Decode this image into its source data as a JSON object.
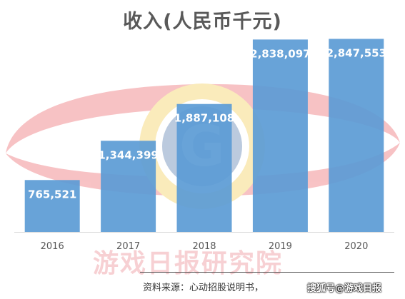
{
  "chart_data": {
    "type": "bar",
    "title": "收入(人民币千元)",
    "categories": [
      "2016",
      "2017",
      "2018",
      "2019",
      "2020"
    ],
    "values": [
      765521,
      1344399,
      1887108,
      2838097,
      2847553
    ],
    "value_labels": [
      "765,521",
      "1,344,399",
      "1,887,108",
      "2,838,097",
      "2,847,553"
    ],
    "ylim": [
      0,
      3000000
    ],
    "grid": false,
    "legend": "none",
    "bar_color": "#5B9BD5",
    "label_color": "#ffffff",
    "axis_color": "#D9D9D9"
  },
  "watermark": {
    "text": "游戏日报研究院",
    "logo_letter": "G",
    "ring_color": "#E8434B",
    "sun_color": "#F2C230",
    "center_color": "#2E5D9A"
  },
  "footer": {
    "source": "资料来源：心动招股说明书，",
    "credit": "搜狐号@游戏日报"
  }
}
